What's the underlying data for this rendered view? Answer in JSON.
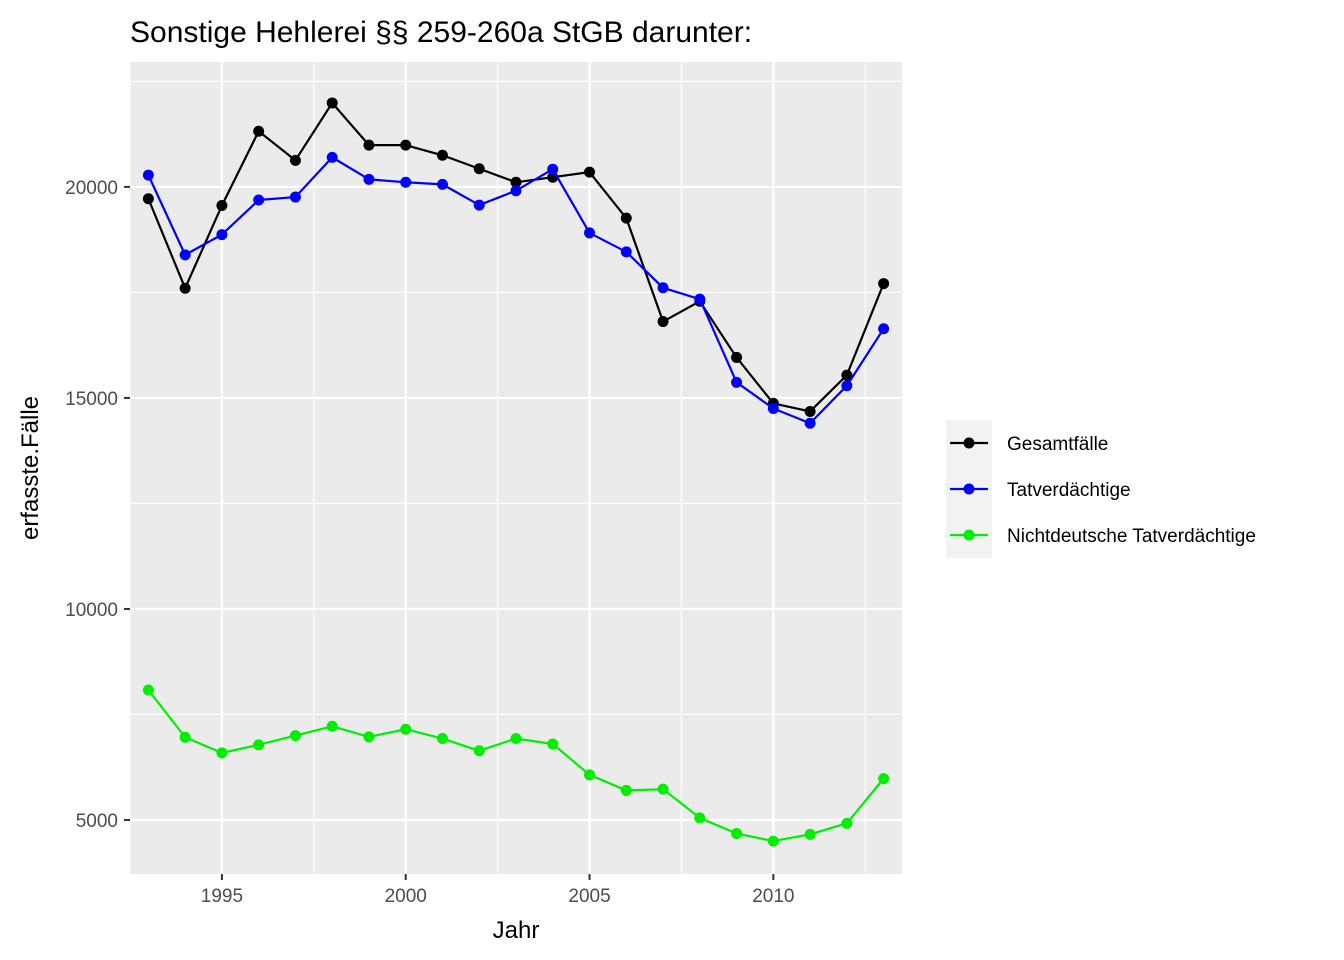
{
  "chart_data": {
    "type": "line",
    "title": "Sonstige Hehlerei §§ 259-260a StGB darunter:",
    "xlabel": "Jahr",
    "ylabel": "erfasste.Fälle",
    "x": [
      1993,
      1994,
      1995,
      1996,
      1997,
      1998,
      1999,
      2000,
      2001,
      2002,
      2003,
      2004,
      2005,
      2006,
      2007,
      2008,
      2009,
      2010,
      2011,
      2012,
      2013
    ],
    "xlim": [
      1992.5,
      2013.5
    ],
    "ylim": [
      3720,
      22960
    ],
    "x_ticks": [
      "1995",
      "2000",
      "2005",
      "2010"
    ],
    "y_ticks": [
      "5000",
      "10000",
      "15000",
      "20000"
    ],
    "grid": true,
    "legend_position": "right",
    "series": [
      {
        "name": "Gesamtfälle",
        "color": "#000000",
        "values": [
          19720,
          17600,
          19560,
          21320,
          20630,
          21990,
          20990,
          20990,
          20750,
          20430,
          20110,
          20230,
          20350,
          19260,
          16810,
          17290,
          15960,
          14870,
          14680,
          15540,
          17710
        ]
      },
      {
        "name": "Tatverdächtige",
        "color": "#0000ff",
        "values": [
          20280,
          18390,
          18870,
          19690,
          19760,
          20700,
          20180,
          20110,
          20060,
          19570,
          19910,
          20420,
          18910,
          18460,
          17610,
          17340,
          15370,
          14750,
          14400,
          15290,
          16640
        ]
      },
      {
        "name": "Nichtdeutsche Tatverdächtige",
        "color": "#00ee00",
        "values": [
          8080,
          6960,
          6590,
          6780,
          7000,
          7220,
          6970,
          7150,
          6930,
          6640,
          6930,
          6800,
          6070,
          5700,
          5730,
          5050,
          4680,
          4500,
          4660,
          4920,
          5980
        ]
      }
    ]
  }
}
